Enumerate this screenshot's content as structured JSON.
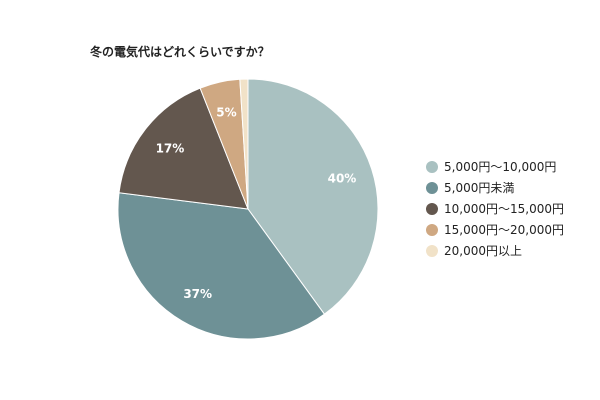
{
  "chart_data": {
    "type": "pie",
    "title": "冬の電気代はどれくらいですか？",
    "legend_position": "right",
    "slices": [
      {
        "label": "5,000円〜10,000円",
        "value": 40,
        "display": "40%",
        "color": "#a9c1c1"
      },
      {
        "label": "5,000円未満",
        "value": 37,
        "display": "37%",
        "color": "#6e9196"
      },
      {
        "label": "10,000円〜15,000円",
        "value": 17,
        "display": "17%",
        "color": "#63574e"
      },
      {
        "label": "15,000円〜20,000円",
        "value": 5,
        "display": "5%",
        "color": "#cfa882"
      },
      {
        "label": "20,000円以上",
        "value": 1,
        "display": "",
        "color": "#f1e2c8"
      }
    ]
  }
}
